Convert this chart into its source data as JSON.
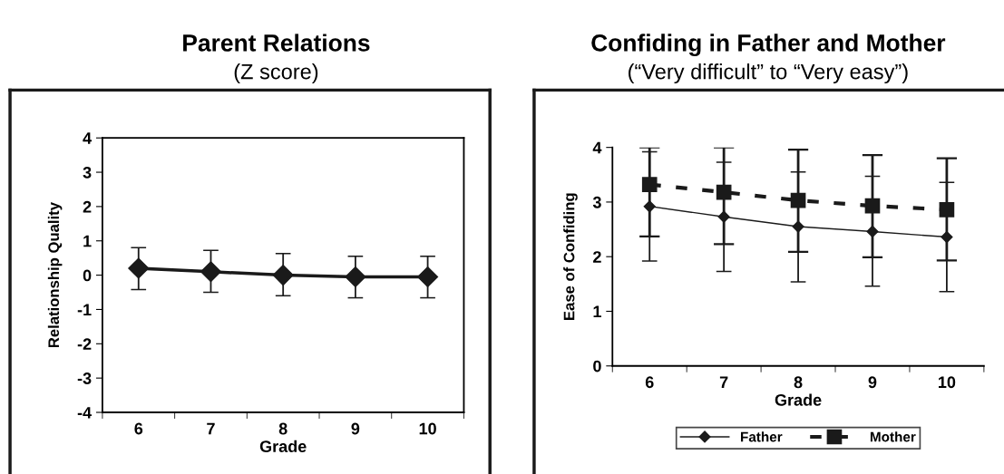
{
  "chart_data": [
    {
      "type": "line",
      "title": "Parent Relations",
      "subtitle": "(Z score)",
      "xlabel": "Grade",
      "ylabel": "Relationship Quality",
      "categories": [
        "6",
        "7",
        "8",
        "9",
        "10"
      ],
      "series": [
        {
          "color": "#1a1a1a",
          "marker": "diamond",
          "line_style": "solid",
          "values": [
            0.2,
            0.1,
            0.0,
            -0.05,
            -0.05
          ],
          "errors": [
            [
              -0.42,
              0.8
            ],
            [
              -0.5,
              0.72
            ],
            [
              -0.6,
              0.63
            ],
            [
              -0.66,
              0.55
            ],
            [
              -0.66,
              0.55
            ]
          ]
        }
      ],
      "ylim": [
        -4,
        4
      ],
      "yticks": [
        -4,
        -3,
        -2,
        -1,
        0,
        1,
        2,
        3,
        4
      ],
      "grid": false,
      "legend": false
    },
    {
      "type": "line",
      "title": "Confiding in Father and Mother",
      "subtitle": "(“Very difficult” to “Very easy”)",
      "xlabel": "Grade",
      "ylabel": "Ease of Confiding",
      "categories": [
        "6",
        "7",
        "8",
        "9",
        "10"
      ],
      "series": [
        {
          "name": "Father",
          "color": "#1a1a1a",
          "marker": "diamond",
          "line_style": "solid",
          "values": [
            2.92,
            2.73,
            2.55,
            2.46,
            2.36
          ],
          "errors": [
            [
              1.92,
              3.92
            ],
            [
              1.73,
              3.73
            ],
            [
              1.54,
              3.55
            ],
            [
              1.46,
              3.47
            ],
            [
              1.36,
              3.36
            ]
          ]
        },
        {
          "name": "Mother",
          "color": "#1a1a1a",
          "marker": "square",
          "line_style": "dashed",
          "values": [
            3.32,
            3.18,
            3.03,
            2.93,
            2.86
          ],
          "errors": [
            [
              2.37,
              4.0
            ],
            [
              2.23,
              4.0
            ],
            [
              2.09,
              3.96
            ],
            [
              1.99,
              3.86
            ],
            [
              1.93,
              3.8
            ]
          ]
        }
      ],
      "ylim": [
        0,
        4
      ],
      "yticks": [
        0,
        1,
        2,
        3,
        4
      ],
      "grid": false,
      "legend": "bottom"
    }
  ]
}
